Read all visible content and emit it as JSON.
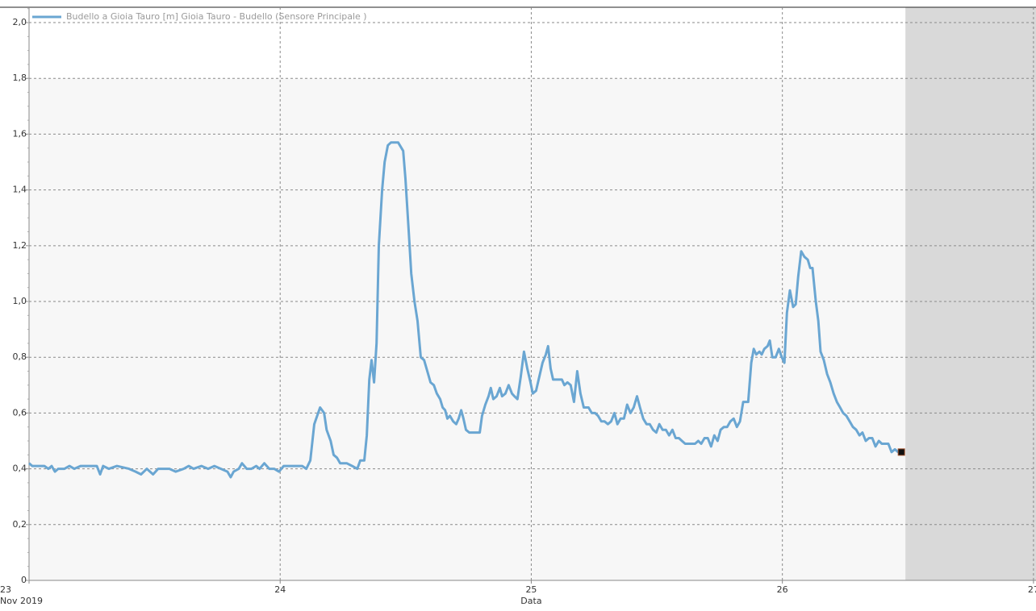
{
  "chart_data": {
    "type": "line",
    "legend_label": "Budello a Gioia Tauro [m] Gioia Tauro - Budello  (Sensore Principale )",
    "legend": "upper left",
    "x_label": "Data",
    "x_sublabel": "Nov 2019",
    "xlim": [
      23,
      27.01
    ],
    "xticks": [
      23,
      24,
      25,
      26,
      27
    ],
    "ylim": [
      0,
      2.055
    ],
    "yticks": [
      0,
      {
        "value": 0.2,
        "label": "0,2"
      },
      {
        "value": 0.4,
        "label": "0,4"
      },
      {
        "value": 0.6,
        "label": "0,6"
      },
      {
        "value": 0.8,
        "label": "0,8"
      },
      {
        "value": 1.0,
        "label": "1,0"
      },
      {
        "value": 1.2,
        "label": "1,2"
      },
      {
        "value": 1.4,
        "label": "1,4"
      },
      {
        "value": 1.6,
        "label": "1,6"
      },
      {
        "value": 1.8,
        "label": "1,8"
      },
      {
        "value": 2.0,
        "label": "2,0"
      }
    ],
    "grid": true,
    "future_region_start": 26.49,
    "x": [
      23.0,
      23.013,
      23.061,
      23.077,
      23.09,
      23.103,
      23.116,
      23.141,
      23.161,
      23.18,
      23.205,
      23.27,
      23.283,
      23.295,
      23.318,
      23.35,
      23.398,
      23.424,
      23.446,
      23.469,
      23.494,
      23.514,
      23.559,
      23.584,
      23.616,
      23.636,
      23.655,
      23.687,
      23.713,
      23.738,
      23.764,
      23.79,
      23.803,
      23.815,
      23.835,
      23.848,
      23.867,
      23.886,
      23.905,
      23.918,
      23.937,
      23.957,
      23.976,
      23.995,
      24.014,
      24.088,
      24.104,
      24.12,
      24.136,
      24.159,
      24.175,
      24.185,
      24.201,
      24.213,
      24.226,
      24.239,
      24.265,
      24.287,
      24.307,
      24.319,
      24.335,
      24.345,
      24.355,
      24.364,
      24.374,
      24.384,
      24.393,
      24.406,
      24.416,
      24.429,
      24.441,
      24.47,
      24.49,
      24.499,
      24.512,
      24.522,
      24.535,
      24.547,
      24.56,
      24.573,
      24.586,
      24.599,
      24.612,
      24.624,
      24.637,
      24.647,
      24.657,
      24.666,
      24.676,
      24.689,
      24.701,
      24.711,
      24.721,
      24.73,
      24.74,
      24.753,
      24.795,
      24.804,
      24.817,
      24.83,
      24.839,
      24.849,
      24.862,
      24.875,
      24.884,
      24.897,
      24.91,
      24.923,
      24.933,
      24.945,
      24.958,
      24.971,
      24.984,
      24.997,
      25.006,
      25.019,
      25.032,
      25.045,
      25.058,
      25.067,
      25.077,
      25.087,
      25.1,
      25.122,
      25.132,
      25.144,
      25.157,
      25.17,
      25.183,
      25.196,
      25.209,
      25.228,
      25.241,
      25.254,
      25.266,
      25.279,
      25.292,
      25.305,
      25.318,
      25.331,
      25.343,
      25.356,
      25.369,
      25.382,
      25.395,
      25.408,
      25.421,
      25.433,
      25.446,
      25.459,
      25.472,
      25.485,
      25.498,
      25.51,
      25.523,
      25.536,
      25.549,
      25.562,
      25.575,
      25.588,
      25.6,
      25.613,
      25.652,
      25.665,
      25.677,
      25.69,
      25.703,
      25.716,
      25.729,
      25.742,
      25.754,
      25.767,
      25.78,
      25.793,
      25.806,
      25.819,
      25.831,
      25.844,
      25.864,
      25.876,
      25.886,
      25.896,
      25.909,
      25.918,
      25.928,
      25.941,
      25.95,
      25.96,
      25.973,
      25.986,
      25.998,
      26.008,
      26.018,
      26.03,
      26.043,
      26.053,
      26.063,
      26.075,
      26.088,
      26.101,
      26.111,
      26.12,
      26.133,
      26.143,
      26.152,
      26.165,
      26.178,
      26.191,
      26.204,
      26.217,
      26.23,
      26.242,
      26.255,
      26.268,
      26.281,
      26.294,
      26.307,
      26.319,
      26.332,
      26.345,
      26.358,
      26.371,
      26.384,
      26.396,
      26.409,
      26.422,
      26.435,
      26.448,
      26.461,
      26.474
    ],
    "series": [
      {
        "name": "Budello a Gioia Tauro [m] Gioia Tauro - Budello  (Sensore Principale )",
        "color": "#6aa6d2",
        "values": [
          0.42,
          0.41,
          0.41,
          0.4,
          0.41,
          0.39,
          0.4,
          0.4,
          0.41,
          0.4,
          0.41,
          0.41,
          0.38,
          0.41,
          0.4,
          0.41,
          0.4,
          0.39,
          0.38,
          0.4,
          0.38,
          0.4,
          0.4,
          0.39,
          0.4,
          0.41,
          0.4,
          0.41,
          0.4,
          0.41,
          0.4,
          0.39,
          0.37,
          0.39,
          0.4,
          0.42,
          0.4,
          0.4,
          0.41,
          0.4,
          0.42,
          0.4,
          0.4,
          0.39,
          0.41,
          0.41,
          0.4,
          0.43,
          0.56,
          0.62,
          0.6,
          0.54,
          0.5,
          0.45,
          0.44,
          0.42,
          0.42,
          0.41,
          0.4,
          0.43,
          0.43,
          0.52,
          0.72,
          0.79,
          0.71,
          0.85,
          1.2,
          1.4,
          1.5,
          1.56,
          1.57,
          1.57,
          1.54,
          1.44,
          1.25,
          1.1,
          1.0,
          0.93,
          0.8,
          0.79,
          0.75,
          0.71,
          0.7,
          0.67,
          0.65,
          0.62,
          0.61,
          0.58,
          0.59,
          0.57,
          0.56,
          0.58,
          0.61,
          0.58,
          0.54,
          0.53,
          0.53,
          0.59,
          0.63,
          0.66,
          0.69,
          0.65,
          0.66,
          0.69,
          0.66,
          0.67,
          0.7,
          0.67,
          0.66,
          0.65,
          0.73,
          0.82,
          0.76,
          0.71,
          0.67,
          0.68,
          0.73,
          0.78,
          0.81,
          0.84,
          0.76,
          0.72,
          0.72,
          0.72,
          0.7,
          0.71,
          0.7,
          0.64,
          0.75,
          0.67,
          0.62,
          0.62,
          0.6,
          0.6,
          0.59,
          0.57,
          0.57,
          0.56,
          0.57,
          0.6,
          0.56,
          0.58,
          0.58,
          0.63,
          0.6,
          0.62,
          0.66,
          0.62,
          0.58,
          0.56,
          0.56,
          0.54,
          0.53,
          0.56,
          0.54,
          0.54,
          0.52,
          0.54,
          0.51,
          0.51,
          0.5,
          0.49,
          0.49,
          0.5,
          0.49,
          0.51,
          0.51,
          0.48,
          0.52,
          0.5,
          0.54,
          0.55,
          0.55,
          0.57,
          0.58,
          0.55,
          0.57,
          0.64,
          0.64,
          0.78,
          0.83,
          0.81,
          0.82,
          0.81,
          0.83,
          0.84,
          0.86,
          0.8,
          0.8,
          0.83,
          0.8,
          0.78,
          0.96,
          1.04,
          0.98,
          0.99,
          1.09,
          1.18,
          1.16,
          1.15,
          1.12,
          1.12,
          1.0,
          0.93,
          0.82,
          0.79,
          0.74,
          0.71,
          0.67,
          0.64,
          0.62,
          0.6,
          0.59,
          0.57,
          0.55,
          0.54,
          0.52,
          0.53,
          0.5,
          0.51,
          0.51,
          0.48,
          0.5,
          0.49,
          0.49,
          0.49,
          0.46,
          0.47,
          0.46,
          0.46
        ]
      }
    ]
  }
}
